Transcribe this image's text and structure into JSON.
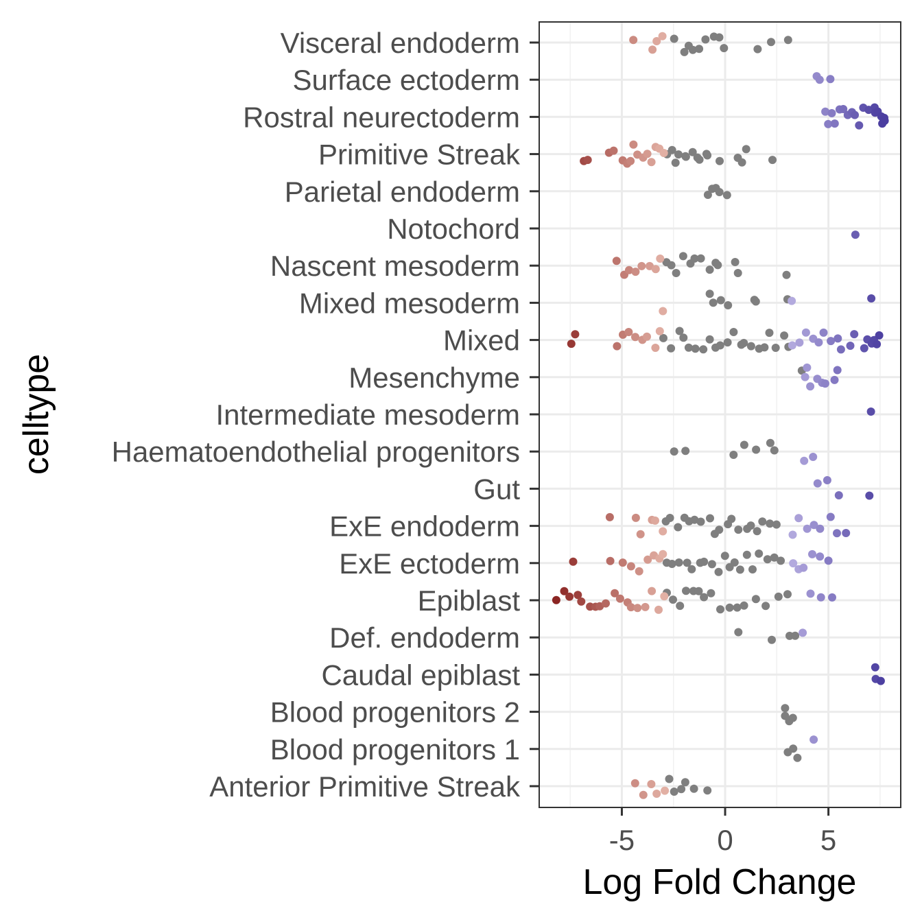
{
  "chart_data": {
    "type": "scatter",
    "xlabel": "Log Fold Change",
    "ylabel": "celltype",
    "xlim": [
      -9.0,
      8.5
    ],
    "x_ticks": [
      -5,
      0,
      5
    ],
    "x_tick_labels": [
      "-5",
      "0",
      "5"
    ],
    "grid": true,
    "legend": "none",
    "colors": {
      "not_significant": "#7f7f7f",
      "strong_negative": "#8b2523",
      "weak_negative": "#e2b0a4",
      "weak_positive": "#b3aade",
      "strong_positive": "#4b3ea0"
    },
    "categories": [
      "Visceral endoderm",
      "Surface ectoderm",
      "Rostral neurectoderm",
      "Primitive Streak",
      "Parietal endoderm",
      "Notochord",
      "Nascent mesoderm",
      "Mixed mesoderm",
      "Mixed",
      "Mesenchyme",
      "Intermediate mesoderm",
      "Haematoendothelial progenitors",
      "Gut",
      "ExE endoderm",
      "ExE ectoderm",
      "Epiblast",
      "Def. endoderm",
      "Caudal epiblast",
      "Blood progenitors 2",
      "Blood progenitors 1",
      "Anterior Primitive Streak"
    ],
    "groups": [
      {
        "category": "Visceral endoderm",
        "sig_neg": [
          -4.4,
          -3.6,
          -3.3,
          -3.1
        ],
        "ns": [
          -2.5,
          -2.0,
          -1.8,
          -1.5,
          -1.3,
          -1.0,
          -0.6,
          -0.3,
          0.0,
          1.5,
          2.3,
          3.0
        ]
      },
      {
        "category": "Surface ectoderm",
        "sig_pos": [
          4.5,
          4.6,
          5.0
        ]
      },
      {
        "category": "Rostral neurectoderm",
        "sig_pos": [
          4.8,
          5.0,
          5.1,
          5.3,
          5.5,
          5.7,
          5.9,
          6.1,
          6.3,
          6.5,
          6.7,
          7.0,
          7.2,
          7.3,
          7.4,
          7.5,
          7.6,
          7.7,
          7.8
        ]
      },
      {
        "category": "Primitive Streak",
        "sig_neg": [
          -6.8,
          -6.6,
          -5.6,
          -5.3,
          -5.0,
          -4.8,
          -4.6,
          -4.4,
          -4.2,
          -4.0,
          -3.8,
          -3.6,
          -3.4,
          -3.2,
          -3.0
        ],
        "ns": [
          -2.8,
          -2.6,
          -2.4,
          -2.2,
          -2.0,
          -1.8,
          -1.6,
          -1.4,
          -1.2,
          -1.0,
          -0.8,
          -0.3,
          0.6,
          0.9,
          1.1,
          2.3
        ]
      },
      {
        "category": "Parietal endoderm",
        "ns": [
          -0.8,
          -0.6,
          -0.4,
          -0.2,
          0.0
        ]
      },
      {
        "category": "Notochord",
        "sig_pos": [
          6.3
        ]
      },
      {
        "category": "Nascent mesoderm",
        "sig_neg": [
          -5.2,
          -4.9,
          -4.6,
          -4.3,
          -4.0,
          -3.7,
          -3.4,
          -3.1
        ],
        "ns": [
          -2.9,
          -2.6,
          -2.3,
          -2.0,
          -1.7,
          -1.4,
          -1.1,
          -0.8,
          -0.5,
          -0.3,
          0.4,
          0.7,
          3.0
        ]
      },
      {
        "category": "Mixed mesoderm",
        "sig_neg": [
          -3.1
        ],
        "sig_pos": [
          3.2,
          7.0
        ],
        "ns": [
          -0.8,
          -0.5,
          -0.2,
          0.1,
          1.4,
          1.5,
          3.0
        ]
      },
      {
        "category": "Mixed",
        "sig_neg": [
          -7.5,
          -7.3,
          -5.3,
          -5.0,
          -4.6,
          -4.3,
          -4.0,
          -3.7,
          -3.4,
          -3.1
        ],
        "sig_pos": [
          3.3,
          3.6,
          3.9,
          4.2,
          4.5,
          4.8,
          5.1,
          5.4,
          5.7,
          6.0,
          6.3,
          6.7,
          6.9,
          7.0,
          7.1,
          7.2,
          7.3,
          7.5
        ],
        "ns": [
          -2.9,
          -2.6,
          -2.3,
          -2.0,
          -1.7,
          -1.4,
          -1.1,
          -0.8,
          -0.5,
          -0.2,
          0.1,
          0.4,
          0.7,
          1.0,
          1.3,
          1.6,
          1.9,
          2.2,
          2.5,
          2.8,
          3.1
        ]
      },
      {
        "category": "Mesenchyme",
        "sig_pos": [
          3.8,
          4.0,
          4.2,
          4.4,
          4.6,
          4.8,
          5.2,
          5.4
        ],
        "ns": [
          3.8
        ]
      },
      {
        "category": "Intermediate mesoderm",
        "sig_pos": [
          7.0
        ]
      },
      {
        "category": "Haematoendothelial progenitors",
        "sig_pos": [
          3.8,
          4.2
        ],
        "ns": [
          -2.5,
          -2.0,
          0.5,
          1.0,
          1.4,
          2.2,
          2.3
        ]
      },
      {
        "category": "Gut",
        "sig_pos": [
          4.5,
          4.9,
          5.6,
          7.0
        ]
      },
      {
        "category": "ExE endoderm",
        "sig_neg": [
          -5.5,
          -4.4,
          -4.1,
          -3.6,
          -3.3,
          -3.1
        ],
        "sig_pos": [
          3.3,
          3.6,
          4.0,
          4.3,
          4.6,
          5.1,
          5.4,
          5.8
        ],
        "ns": [
          -2.9,
          -2.6,
          -2.3,
          -2.0,
          -1.7,
          -1.4,
          -1.1,
          -0.8,
          -0.5,
          -0.2,
          0.1,
          0.4,
          0.7,
          1.0,
          1.3,
          1.6,
          1.9,
          2.2,
          2.5
        ]
      },
      {
        "category": "ExE ectoderm",
        "sig_neg": [
          -7.3,
          -5.5,
          -5.0,
          -4.6,
          -4.2,
          -3.8,
          -3.5,
          -3.2,
          -3.0
        ],
        "sig_pos": [
          3.2,
          3.5,
          3.8,
          4.2,
          4.5,
          5.1
        ],
        "ns": [
          -2.8,
          -2.5,
          -2.2,
          -1.9,
          -1.6,
          -1.3,
          -1.0,
          -0.7,
          -0.4,
          -0.1,
          0.2,
          0.5,
          0.8,
          1.1,
          1.4,
          1.7,
          2.0,
          2.3,
          2.6
        ]
      },
      {
        "category": "Epiblast",
        "sig_neg": [
          -8.2,
          -7.8,
          -7.5,
          -7.2,
          -6.9,
          -6.6,
          -6.3,
          -6.0,
          -5.7,
          -5.4,
          -5.1,
          -4.8,
          -4.5,
          -4.2,
          -3.9,
          -3.6,
          -3.3,
          -3.0
        ],
        "sig_pos": [
          4.2,
          4.7,
          5.1
        ],
        "ns": [
          -2.8,
          -2.5,
          -2.2,
          -1.9,
          -1.6,
          -1.3,
          -1.0,
          -0.6,
          -0.2,
          0.2,
          0.6,
          1.0,
          1.5,
          2.0,
          2.5,
          3.0
        ]
      },
      {
        "category": "Def. endoderm",
        "sig_pos": [
          3.8
        ],
        "ns": [
          0.6,
          2.3,
          3.1,
          3.4
        ]
      },
      {
        "category": "Caudal epiblast",
        "sig_pos": [
          7.2,
          7.3,
          7.5
        ]
      },
      {
        "category": "Blood progenitors 2",
        "ns": [
          2.9,
          3.0,
          3.1,
          3.2
        ]
      },
      {
        "category": "Blood progenitors 1",
        "sig_pos": [
          4.2
        ],
        "ns": [
          3.1,
          3.3,
          3.4
        ]
      },
      {
        "category": "Anterior Primitive Streak",
        "sig_neg": [
          -4.3,
          -4.0,
          -3.6,
          -3.3,
          -3.0
        ],
        "ns": [
          -2.8,
          -2.5,
          -2.2,
          -1.9,
          -1.6,
          -0.9
        ]
      }
    ]
  }
}
